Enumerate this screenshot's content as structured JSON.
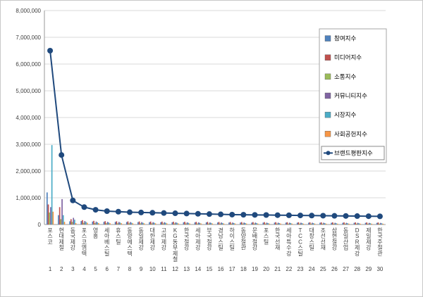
{
  "page": {
    "background": "#ffffff",
    "border_color": "#c8c8c8"
  },
  "chart_data": {
    "type": "bar",
    "title": "",
    "xlabel": "",
    "ylabel": "",
    "ylim": [
      0,
      8000000
    ],
    "ytick_interval": 1000000,
    "grid": true,
    "legend_position": "right-top",
    "categories": [
      "포스코",
      "현대제철",
      "동국제강",
      "포스코엠텍",
      "영흥",
      "세아베스틸",
      "휴스틸",
      "동양에스텍",
      "동일제강",
      "대한제강",
      "고려제강",
      "KG동부제철",
      "한국철강",
      "세아제강",
      "부국철강",
      "경남스틸",
      "하이스틸",
      "동양철관",
      "문배철강",
      "포스틸",
      "한국선재",
      "세아특수강",
      "TCC스틸",
      "대창스틸",
      "조선선재",
      "삼현철강",
      "동일산업",
      "DSR제강",
      "제일제강",
      "한국주철관"
    ],
    "rank_labels": [
      "1",
      "2",
      "3",
      "4",
      "5",
      "6",
      "7",
      "8",
      "9",
      "10",
      "11",
      "12",
      "13",
      "14",
      "15",
      "16",
      "17",
      "18",
      "19",
      "20",
      "21",
      "22",
      "23",
      "24",
      "25",
      "26",
      "27",
      "28",
      "29",
      "30"
    ],
    "series": [
      {
        "name": "참여지수",
        "color": "#4F81BD",
        "values": [
          1200000,
          350000,
          120000,
          130000,
          110000,
          100000,
          96000,
          92000,
          90000,
          88000,
          86000,
          84000,
          82000,
          80000,
          78000,
          76000,
          74000,
          73000,
          72000,
          71000,
          70000,
          69000,
          68000,
          67000,
          66000,
          65000,
          64000,
          63000,
          62000,
          61000
        ]
      },
      {
        "name": "미디어지수",
        "color": "#C0504D",
        "values": [
          750000,
          650000,
          200000,
          163000,
          138000,
          125000,
          120000,
          115000,
          113000,
          110000,
          108000,
          105000,
          103000,
          100000,
          98000,
          95000,
          93000,
          91000,
          90000,
          89000,
          88000,
          86000,
          85000,
          84000,
          83000,
          81000,
          80000,
          79000,
          78000,
          76000
        ]
      },
      {
        "name": "소통지수",
        "color": "#9BBB59",
        "values": [
          450000,
          200000,
          100000,
          65000,
          55000,
          50000,
          48000,
          46000,
          45000,
          44000,
          43000,
          42000,
          41000,
          40000,
          39000,
          38000,
          37000,
          36500,
          36000,
          35500,
          35000,
          34500,
          34000,
          33500,
          33000,
          32500,
          32000,
          31500,
          31000,
          30500
        ]
      },
      {
        "name": "커뮤니티지수",
        "color": "#8064A2",
        "values": [
          650000,
          950000,
          250000,
          130000,
          110000,
          100000,
          96000,
          92000,
          90000,
          88000,
          86000,
          84000,
          82000,
          80000,
          78000,
          76000,
          74000,
          73000,
          72000,
          71000,
          70000,
          69000,
          68000,
          67000,
          66000,
          65000,
          64000,
          63000,
          62000,
          61000
        ]
      },
      {
        "name": "시장지수",
        "color": "#4BACC6",
        "values": [
          2970000,
          350000,
          180000,
          97000,
          83000,
          75000,
          72000,
          69000,
          67000,
          66000,
          65000,
          63000,
          62000,
          60000,
          59000,
          57000,
          55000,
          55000,
          54000,
          53000,
          53000,
          52000,
          51000,
          50000,
          49000,
          49000,
          48000,
          47000,
          47000,
          46000
        ]
      },
      {
        "name": "사회공헌지수",
        "color": "#F79646",
        "values": [
          480000,
          100000,
          50000,
          65000,
          54000,
          50000,
          48000,
          46000,
          45000,
          44000,
          43000,
          42000,
          41000,
          40000,
          39000,
          38000,
          37000,
          36500,
          36000,
          35500,
          35000,
          34500,
          34000,
          33500,
          33000,
          32500,
          32000,
          31500,
          31000,
          30500
        ]
      }
    ],
    "line_series": {
      "name": "브랜드평판지수",
      "color": "#1F497D",
      "values": [
        6500000,
        2600000,
        900000,
        650000,
        550000,
        500000,
        480000,
        460000,
        450000,
        440000,
        430000,
        420000,
        410000,
        400000,
        390000,
        380000,
        370000,
        365000,
        360000,
        355000,
        350000,
        345000,
        340000,
        335000,
        330000,
        325000,
        320000,
        315000,
        310000,
        305000
      ]
    }
  }
}
